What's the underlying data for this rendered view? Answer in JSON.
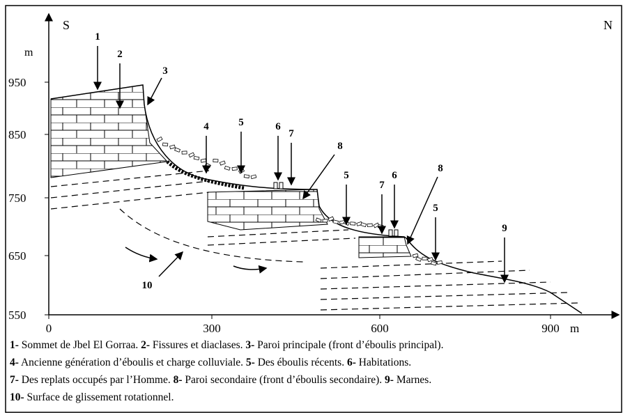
{
  "orientation": {
    "left": "S",
    "right": "N"
  },
  "y_axis": {
    "unit": "m",
    "ticks": [
      "950",
      "850",
      "750",
      "650",
      "550"
    ]
  },
  "x_axis": {
    "unit": "m",
    "ticks": [
      "0",
      "300",
      "600",
      "900"
    ]
  },
  "callouts": [
    "1",
    "2",
    "3",
    "4",
    "5",
    "6",
    "7",
    "8",
    "5",
    "7",
    "6",
    "8",
    "5",
    "9",
    "10"
  ],
  "legend": {
    "lines": [
      [
        {
          "num": "1-",
          "text": " Sommet de Jbel El Gorraa. "
        },
        {
          "num": "2-",
          "text": " Fissures et diaclases. "
        },
        {
          "num": "3-",
          "text": " Paroi principale (front d’éboulis principal)."
        }
      ],
      [
        {
          "num": "4-",
          "text": " Ancienne génération d’éboulis et charge colluviale. "
        },
        {
          "num": "5-",
          "text": " Des éboulis récents. "
        },
        {
          "num": "6-",
          "text": " Habitations."
        }
      ],
      [
        {
          "num": "7-",
          "text": " Des replats occupés par l’Homme. "
        },
        {
          "num": "8-",
          "text": " Paroi secondaire (front d’éboulis secondaire). "
        },
        {
          "num": "9-",
          "text": " Marnes."
        }
      ],
      [
        {
          "num": "10-",
          "text": " Surface de glissement rotationnel."
        }
      ]
    ]
  }
}
